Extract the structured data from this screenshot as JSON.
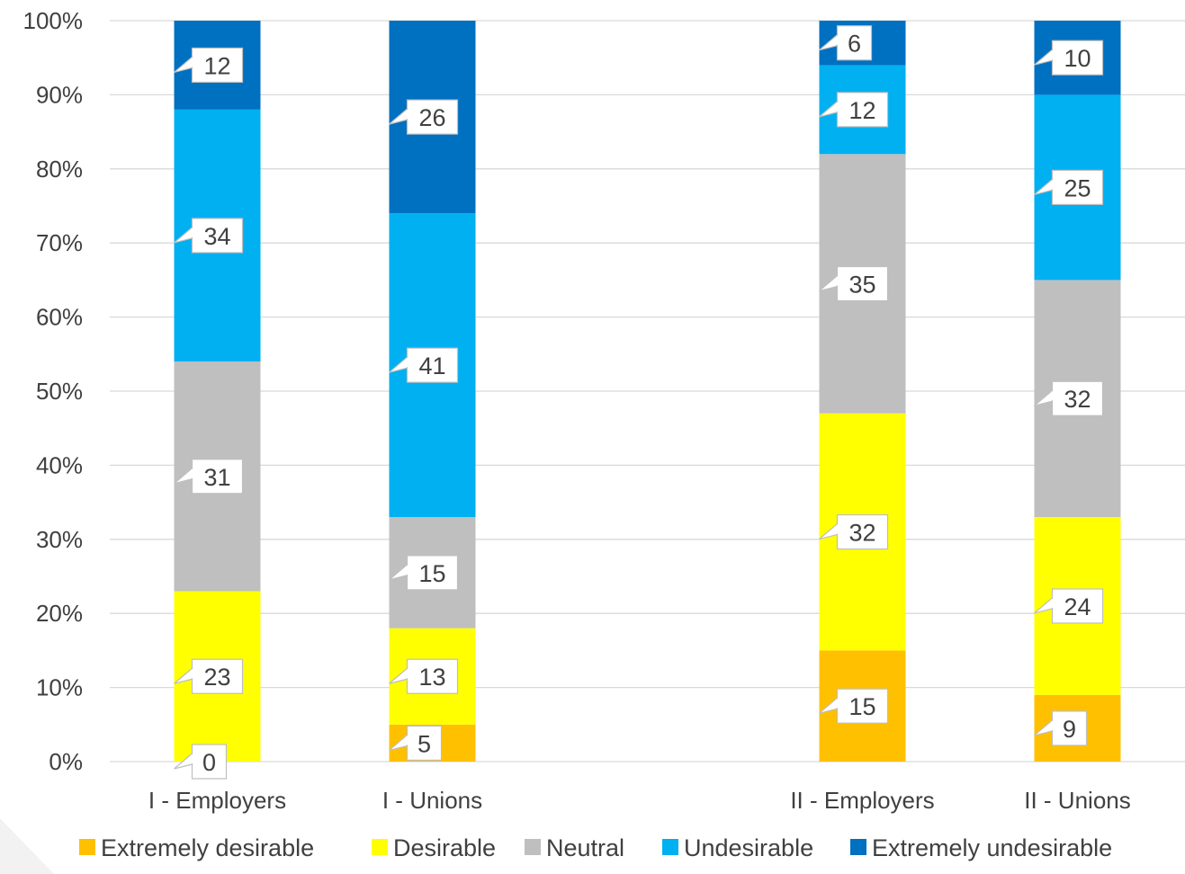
{
  "chart_data": {
    "type": "bar",
    "stacked": "percent",
    "categories": [
      "I - Employers",
      "I - Unions",
      "",
      "II - Employers",
      "II - Unions"
    ],
    "series": [
      {
        "name": "Extremely desirable",
        "color": "#FFC000",
        "values": [
          0,
          5,
          null,
          15,
          9
        ]
      },
      {
        "name": "Desirable",
        "color": "#FFFF00",
        "values": [
          23,
          13,
          null,
          32,
          24
        ]
      },
      {
        "name": "Neutral",
        "color": "#BFBFBF",
        "values": [
          31,
          15,
          null,
          35,
          32
        ]
      },
      {
        "name": "Undesirable",
        "color": "#00B0F0",
        "values": [
          34,
          41,
          null,
          12,
          25
        ]
      },
      {
        "name": "Extremely undesirable",
        "color": "#0070C0",
        "values": [
          12,
          26,
          null,
          6,
          10
        ]
      }
    ],
    "ylim": [
      0,
      100
    ],
    "yticks": [
      "0%",
      "10%",
      "20%",
      "30%",
      "40%",
      "50%",
      "60%",
      "70%",
      "80%",
      "90%",
      "100%"
    ],
    "grid": true,
    "legend": "bottom"
  }
}
